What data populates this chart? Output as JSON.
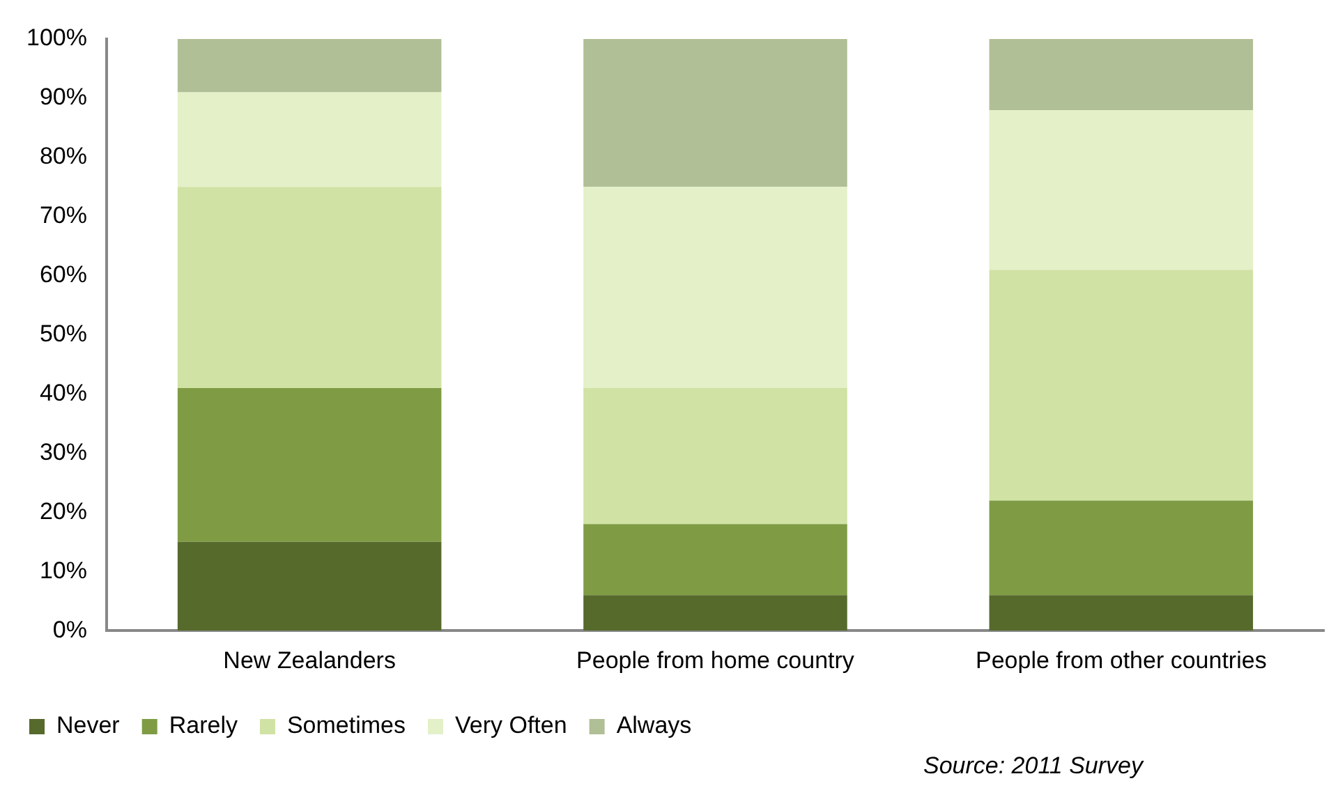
{
  "chart_data": {
    "type": "bar",
    "stacked": true,
    "categories": [
      "New Zealanders",
      "People from home country",
      "People from other countries"
    ],
    "series": [
      {
        "name": "Never",
        "color": "#566a2c",
        "values": [
          15,
          6,
          6
        ]
      },
      {
        "name": "Rarely",
        "color": "#7f9c44",
        "values": [
          26,
          12,
          16
        ]
      },
      {
        "name": "Sometimes",
        "color": "#d0e2a4",
        "values": [
          34,
          23,
          39
        ]
      },
      {
        "name": "Very Often",
        "color": "#e4f0c8",
        "values": [
          16,
          34,
          27
        ]
      },
      {
        "name": "Always",
        "color": "#b0bf96",
        "values": [
          9,
          25,
          12
        ]
      }
    ],
    "ylim": [
      0,
      100
    ],
    "yticks": [
      {
        "value": 0,
        "label": "0%"
      },
      {
        "value": 10,
        "label": "10%"
      },
      {
        "value": 20,
        "label": "20%"
      },
      {
        "value": 30,
        "label": "30%"
      },
      {
        "value": 40,
        "label": "40%"
      },
      {
        "value": 50,
        "label": "50%"
      },
      {
        "value": 60,
        "label": "60%"
      },
      {
        "value": 70,
        "label": "70%"
      },
      {
        "value": 80,
        "label": "80%"
      },
      {
        "value": 90,
        "label": "90%"
      },
      {
        "value": 100,
        "label": "100%"
      }
    ],
    "grid": false,
    "legend": "bottom",
    "annotations": [
      "Source: 2011 Survey"
    ]
  }
}
